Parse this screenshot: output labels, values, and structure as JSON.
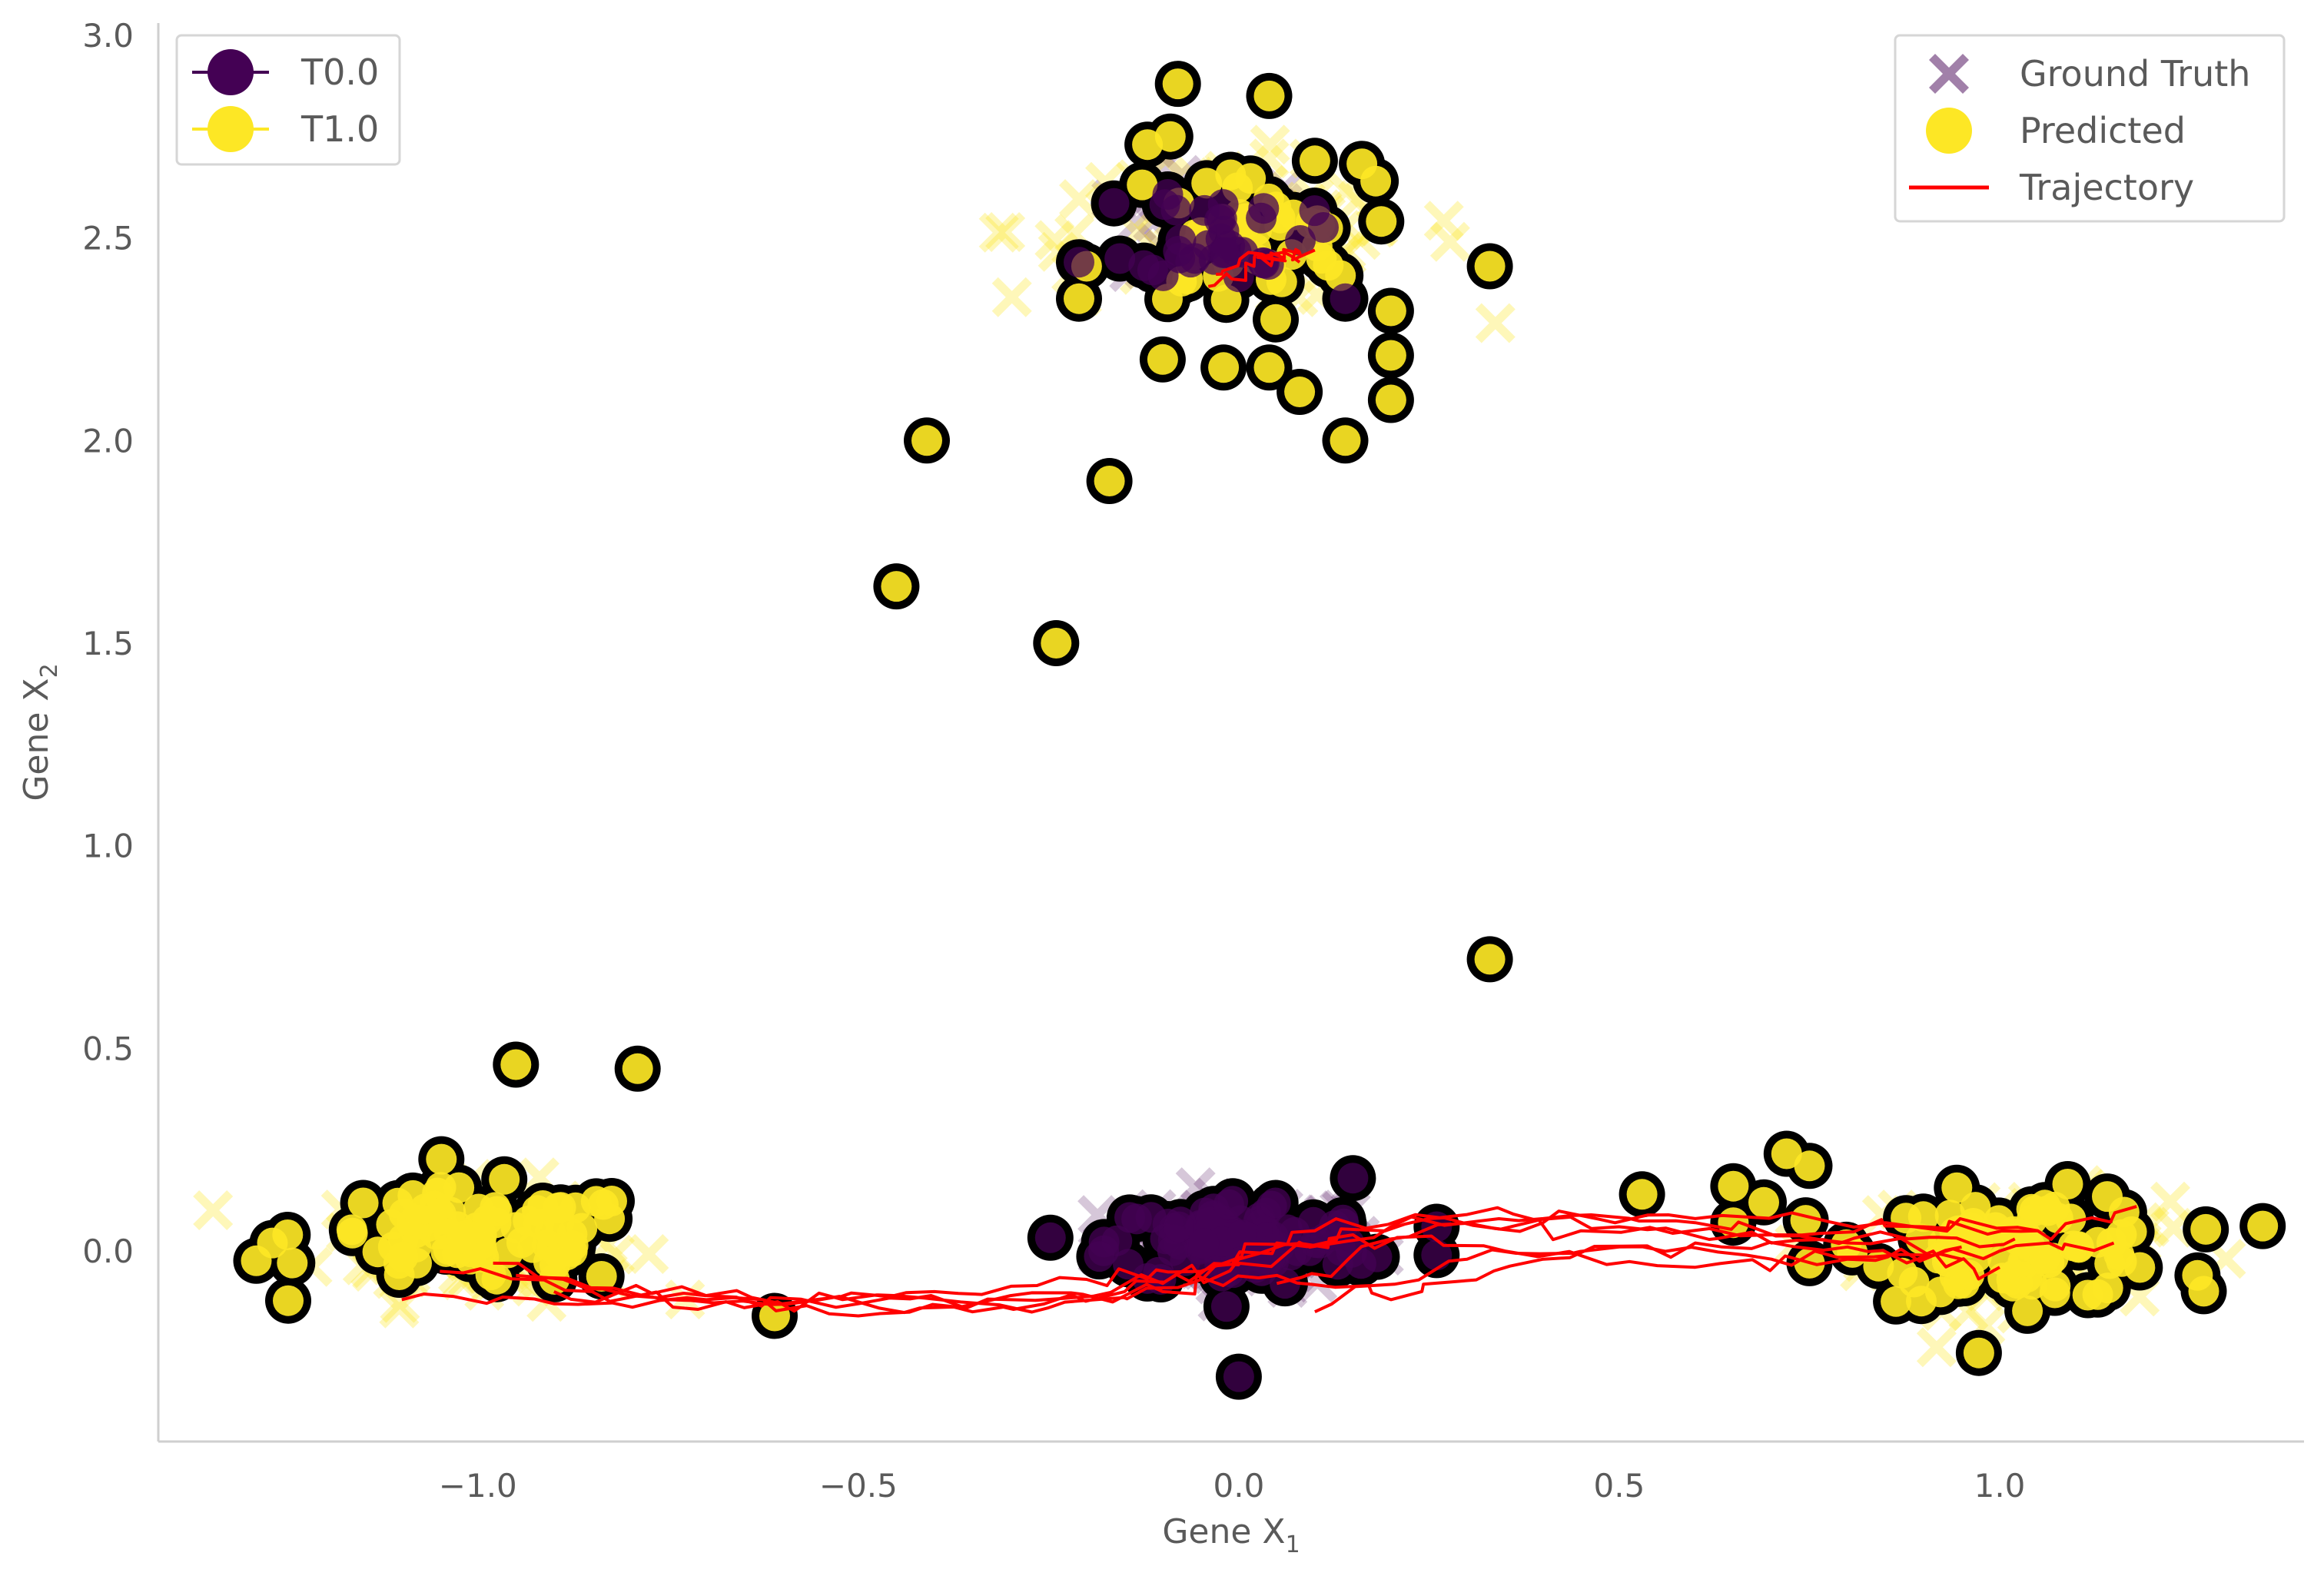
{
  "chart_data": {
    "type": "scatter",
    "xlabel": "Gene X",
    "xlabel_sub": "1",
    "ylabel": "Gene X",
    "ylabel_sub": "2",
    "xlim": [
      -1.42,
      1.4
    ],
    "ylim": [
      -0.47,
      3.03
    ],
    "x_ticks": [
      -1.0,
      -0.5,
      0.0,
      0.5,
      1.0
    ],
    "x_tick_labels": [
      "−1.0",
      "−0.5",
      "0.0",
      "0.5",
      "1.0"
    ],
    "y_ticks": [
      0.0,
      0.5,
      1.0,
      1.5,
      2.0,
      2.5,
      3.0
    ],
    "y_tick_labels": [
      "0.0",
      "0.5",
      "1.0",
      "1.5",
      "2.0",
      "2.5",
      "3.0"
    ],
    "grid": false,
    "colors": {
      "t0": "#440154",
      "t1": "#fde725",
      "trajectory": "#ff0000",
      "outline": "#000000"
    },
    "legend_time": {
      "placement": "top-left",
      "entries": [
        {
          "label": "T0.0",
          "color": "#440154"
        },
        {
          "label": "T1.0",
          "color": "#fde725"
        }
      ]
    },
    "legend_style": {
      "placement": "top-right",
      "entries": [
        {
          "label": "Ground Truth",
          "marker": "x-cross"
        },
        {
          "label": "Predicted",
          "marker": "circle"
        },
        {
          "label": "Trajectory",
          "marker": "line"
        }
      ]
    },
    "ground_truth_clusters": [
      {
        "time": "T0.0",
        "cx": 0.0,
        "cy": 0.02,
        "sx": 0.09,
        "sy": 0.055,
        "n": 90
      },
      {
        "time": "T0.0",
        "cx": -0.03,
        "cy": 2.52,
        "sx": 0.06,
        "sy": 0.07,
        "n": 40
      },
      {
        "time": "T1.0",
        "cx": -1.0,
        "cy": 0.02,
        "sx": 0.1,
        "sy": 0.07,
        "n": 80
      },
      {
        "time": "T1.0",
        "cx": 1.02,
        "cy": 0.0,
        "sx": 0.1,
        "sy": 0.07,
        "n": 80
      },
      {
        "time": "T1.0",
        "cx": 0.0,
        "cy": 2.52,
        "sx": 0.15,
        "sy": 0.09,
        "n": 70
      }
    ],
    "predicted_t0_clusters": [
      {
        "cx": 0.0,
        "cy": 0.02,
        "sx": 0.085,
        "sy": 0.055,
        "n": 110
      },
      {
        "cx": -0.02,
        "cy": 2.52,
        "sx": 0.055,
        "sy": 0.06,
        "n": 35
      }
    ],
    "predicted_t0_points": [
      [
        0.0,
        -0.31
      ],
      [
        0.26,
        0.06
      ],
      [
        0.26,
        -0.01
      ],
      [
        0.15,
        0.18
      ],
      [
        0.14,
        2.35
      ],
      [
        -0.21,
        2.44
      ]
    ],
    "predicted_t1_clusters": [
      {
        "cx": -1.0,
        "cy": 0.03,
        "sx": 0.11,
        "sy": 0.06,
        "n": 90
      },
      {
        "cx": 1.03,
        "cy": 0.01,
        "sx": 0.1,
        "sy": 0.065,
        "n": 90
      },
      {
        "cx": 0.0,
        "cy": 2.5,
        "sx": 0.08,
        "sy": 0.09,
        "n": 45
      }
    ],
    "predicted_t1_points": [
      [
        -0.95,
        0.46
      ],
      [
        -0.79,
        0.45
      ],
      [
        -0.61,
        -0.16
      ],
      [
        -1.27,
        0.02
      ],
      [
        -1.25,
        0.04
      ],
      [
        -0.45,
        1.64
      ],
      [
        -0.41,
        2.0
      ],
      [
        -0.24,
        1.5
      ],
      [
        -0.17,
        1.9
      ],
      [
        0.33,
        0.72
      ],
      [
        0.53,
        0.14
      ],
      [
        0.65,
        0.16
      ],
      [
        0.65,
        0.07
      ],
      [
        0.69,
        0.12
      ],
      [
        0.72,
        0.24
      ],
      [
        0.75,
        0.21
      ],
      [
        0.75,
        -0.03
      ],
      [
        1.26,
        -0.06
      ],
      [
        0.33,
        2.43
      ],
      [
        0.14,
        2.0
      ],
      [
        0.2,
        2.1
      ],
      [
        0.2,
        2.21
      ],
      [
        0.2,
        2.32
      ],
      [
        -0.08,
        2.88
      ],
      [
        0.04,
        2.85
      ],
      [
        -0.1,
        2.2
      ],
      [
        -0.02,
        2.18
      ],
      [
        0.04,
        2.18
      ],
      [
        0.08,
        2.12
      ],
      [
        -0.21,
        2.35
      ],
      [
        -0.2,
        2.43
      ],
      [
        0.18,
        2.64
      ],
      [
        0.1,
        2.69
      ],
      [
        -0.12,
        2.73
      ],
      [
        -0.09,
        2.75
      ]
    ],
    "trajectories": [
      [
        [
          -1.1,
          -0.12
        ],
        [
          -0.9,
          -0.13
        ],
        [
          -0.7,
          -0.12
        ],
        [
          -0.5,
          -0.16
        ],
        [
          -0.3,
          -0.12
        ],
        [
          -0.1,
          -0.08
        ],
        [
          0.0,
          -0.03
        ],
        [
          0.2,
          0.06
        ],
        [
          0.4,
          0.08
        ],
        [
          0.6,
          0.07
        ],
        [
          0.8,
          0.02
        ],
        [
          1.0,
          0.0
        ],
        [
          1.15,
          0.02
        ]
      ],
      [
        [
          -1.05,
          -0.05
        ],
        [
          -0.85,
          -0.1
        ],
        [
          -0.65,
          -0.14
        ],
        [
          -0.45,
          -0.11
        ],
        [
          -0.25,
          -0.14
        ],
        [
          -0.08,
          -0.09
        ],
        [
          0.05,
          0.02
        ],
        [
          0.25,
          0.08
        ],
        [
          0.45,
          0.05
        ],
        [
          0.7,
          0.04
        ],
        [
          0.9,
          0.06
        ],
        [
          1.05,
          0.05
        ]
      ],
      [
        [
          -0.98,
          -0.03
        ],
        [
          -0.8,
          -0.11
        ],
        [
          -0.6,
          -0.13
        ],
        [
          -0.4,
          -0.1
        ],
        [
          -0.2,
          -0.07
        ],
        [
          -0.05,
          -0.05
        ],
        [
          0.1,
          0.05
        ],
        [
          0.3,
          0.09
        ],
        [
          0.5,
          0.06
        ],
        [
          0.7,
          0.02
        ],
        [
          0.88,
          0.03
        ],
        [
          1.02,
          0.03
        ]
      ],
      [
        [
          -0.95,
          -0.06
        ],
        [
          -0.75,
          -0.12
        ],
        [
          -0.55,
          -0.12
        ],
        [
          -0.35,
          -0.15
        ],
        [
          -0.15,
          -0.1
        ],
        [
          0.0,
          -0.02
        ],
        [
          0.15,
          0.04
        ],
        [
          0.35,
          0.0
        ],
        [
          0.6,
          -0.04
        ],
        [
          0.8,
          -0.02
        ],
        [
          0.95,
          0.01
        ]
      ],
      [
        [
          -0.9,
          -0.1
        ],
        [
          -0.7,
          -0.11
        ],
        [
          -0.5,
          -0.13
        ],
        [
          -0.3,
          -0.11
        ],
        [
          -0.1,
          -0.1
        ],
        [
          0.05,
          -0.06
        ],
        [
          0.2,
          -0.12
        ],
        [
          0.4,
          -0.02
        ],
        [
          0.6,
          0.02
        ],
        [
          0.8,
          0.01
        ],
        [
          0.95,
          -0.02
        ]
      ],
      [
        [
          0.05,
          -0.08
        ],
        [
          0.2,
          0.03
        ],
        [
          0.4,
          0.07
        ],
        [
          0.6,
          0.08
        ],
        [
          0.85,
          0.07
        ],
        [
          1.05,
          0.05
        ],
        [
          1.18,
          0.11
        ]
      ],
      [
        [
          0.1,
          -0.15
        ],
        [
          0.3,
          -0.02
        ],
        [
          0.5,
          0.01
        ],
        [
          0.7,
          -0.02
        ],
        [
          0.9,
          -0.01
        ],
        [
          1.0,
          -0.04
        ]
      ],
      [
        [
          -0.04,
          2.38
        ],
        [
          0.02,
          2.43
        ],
        [
          0.06,
          2.45
        ],
        [
          0.1,
          2.47
        ]
      ],
      [
        [
          -0.03,
          2.41
        ],
        [
          0.03,
          2.46
        ],
        [
          0.08,
          2.44
        ]
      ]
    ]
  }
}
